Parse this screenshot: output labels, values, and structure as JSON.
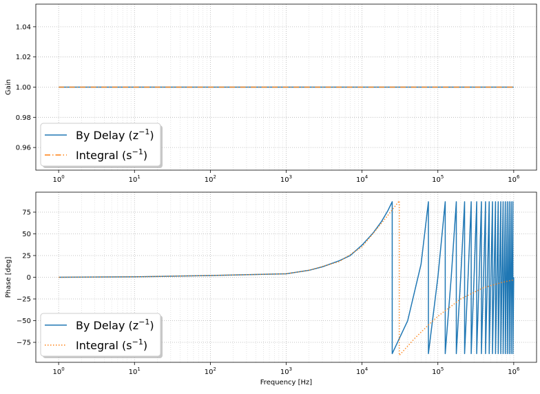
{
  "chart_data": [
    {
      "type": "line",
      "xscale": "log",
      "xlim": [
        0.5,
        2000000
      ],
      "ylim": [
        0.945,
        1.055
      ],
      "ylabel": "Gain",
      "xlabel": "",
      "grid": "both (major and minor x)",
      "x_ticks": [
        1,
        10,
        100,
        1000,
        10000,
        100000,
        1000000
      ],
      "x_tick_labels": [
        {
          "base": "10",
          "exp": "0"
        },
        {
          "base": "10",
          "exp": "1"
        },
        {
          "base": "10",
          "exp": "2"
        },
        {
          "base": "10",
          "exp": "3"
        },
        {
          "base": "10",
          "exp": "4"
        },
        {
          "base": "10",
          "exp": "5"
        },
        {
          "base": "10",
          "exp": "6"
        }
      ],
      "y_ticks": [
        0.96,
        0.98,
        1.0,
        1.02,
        1.04
      ],
      "y_tick_labels": [
        "0.96",
        "0.98",
        "1.00",
        "1.02",
        "1.04"
      ],
      "legend_position": "lower-left",
      "series": [
        {
          "name": "By Delay (z⁻¹)",
          "label_main": "By Delay (z",
          "label_sup": "−1",
          "label_end": ")",
          "color": "#1f77b4",
          "style": "solid",
          "x": [
            1,
            1000000
          ],
          "y": [
            1.0,
            1.0
          ]
        },
        {
          "name": "Integral (s⁻¹)",
          "label_main": "Integral (s",
          "label_sup": "−1",
          "label_end": ")",
          "color": "#ff7f0e",
          "style": "dashdot",
          "x": [
            1,
            1000000
          ],
          "y": [
            1.0,
            1.0
          ]
        }
      ]
    },
    {
      "type": "line",
      "xscale": "log",
      "xlim": [
        0.5,
        2000000
      ],
      "ylim": [
        -98,
        98
      ],
      "ylabel": "Phase [deg]",
      "xlabel": "Frequency [Hz]",
      "grid": "both (major and minor x)",
      "x_ticks": [
        1,
        10,
        100,
        1000,
        10000,
        100000,
        1000000
      ],
      "x_tick_labels": [
        {
          "base": "10",
          "exp": "0"
        },
        {
          "base": "10",
          "exp": "1"
        },
        {
          "base": "10",
          "exp": "2"
        },
        {
          "base": "10",
          "exp": "3"
        },
        {
          "base": "10",
          "exp": "4"
        },
        {
          "base": "10",
          "exp": "5"
        },
        {
          "base": "10",
          "exp": "6"
        }
      ],
      "y_ticks": [
        -75,
        -50,
        -25,
        0,
        25,
        50,
        75
      ],
      "y_tick_labels": [
        "−75",
        "−50",
        "−25",
        "0",
        "25",
        "50",
        "75"
      ],
      "legend_position": "lower-left",
      "series": [
        {
          "name": "By Delay (z⁻¹)",
          "label_main": "By Delay (z",
          "label_sup": "−1",
          "label_end": ")",
          "color": "#1f77b4",
          "style": "solid",
          "x": [
            1,
            10,
            100,
            1000,
            2000,
            3000,
            5000,
            7000,
            10000,
            14000,
            18000,
            22000,
            25000,
            25001,
            40000,
            60000,
            75000,
            75001,
            100000,
            125000,
            125001,
            150000,
            175000,
            175001,
            200000,
            225000,
            225001,
            250000,
            275000,
            275001,
            300000,
            325000,
            325001,
            350000,
            375000,
            375001,
            400000,
            425000,
            425001,
            450000,
            475000,
            475001,
            500000,
            525000,
            525001,
            550000,
            575000,
            575001,
            600000,
            625000,
            625001,
            650000,
            675000,
            675001,
            700000,
            725000,
            725001,
            750000,
            775000,
            775001,
            800000,
            825000,
            825001,
            850000,
            875000,
            875001,
            900000,
            925000,
            925001,
            950000,
            975000,
            975001,
            1000000
          ],
          "y": [
            0,
            0.5,
            2,
            4,
            8,
            12,
            19,
            25,
            37,
            51,
            64,
            77,
            87,
            -88,
            -50,
            15,
            87,
            -88,
            0,
            87,
            -88,
            0,
            87,
            -88,
            0,
            87,
            -88,
            0,
            87,
            -88,
            0,
            87,
            -88,
            0,
            87,
            -88,
            0,
            87,
            -88,
            0,
            87,
            -88,
            0,
            87,
            -88,
            0,
            87,
            -88,
            0,
            87,
            -88,
            0,
            87,
            -88,
            0,
            87,
            -88,
            0,
            87,
            -88,
            0,
            87,
            -88,
            0,
            87,
            -88,
            0,
            87,
            -88,
            0,
            87,
            -88,
            0
          ]
        },
        {
          "name": "Integral (s⁻¹)",
          "label_main": "Integral (s",
          "label_sup": "−1",
          "label_end": ")",
          "color": "#ff7f0e",
          "style": "dotted",
          "x": [
            1,
            10,
            100,
            1000,
            2000,
            5000,
            10000,
            20000,
            31000,
            31001,
            50000,
            75000,
            100000,
            200000,
            400000,
            700000,
            1000000
          ],
          "y": [
            0,
            0.5,
            2,
            4,
            8,
            18,
            35,
            67,
            88,
            -90,
            -70,
            -55,
            -45,
            -25,
            -12,
            -6,
            -3
          ]
        }
      ]
    }
  ]
}
